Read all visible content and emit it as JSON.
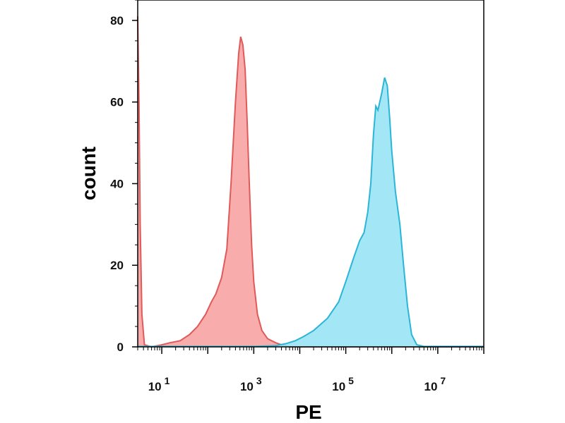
{
  "chart_data": {
    "type": "area",
    "xlabel": "PE",
    "ylabel": "count",
    "xscale": "log",
    "xlim": [
      3,
      100000000.0
    ],
    "ylim": [
      0,
      85
    ],
    "yticks": [
      0,
      20,
      40,
      60,
      80
    ],
    "xticks": [
      {
        "value": 10,
        "base": "10",
        "exp": "1"
      },
      {
        "value": 1000,
        "base": "10",
        "exp": "3"
      },
      {
        "value": 100000,
        "base": "10",
        "exp": "5"
      },
      {
        "value": 10000000,
        "base": "10",
        "exp": "7"
      }
    ],
    "grid": false,
    "legend": "none",
    "series": [
      {
        "color": "#e05a5a",
        "fill": "#f7a3a3",
        "points": [
          [
            3.0,
            81
          ],
          [
            3.2,
            60
          ],
          [
            3.4,
            30
          ],
          [
            3.7,
            8
          ],
          [
            4.2,
            0.5
          ],
          [
            6,
            0
          ],
          [
            10,
            0.5
          ],
          [
            15,
            1
          ],
          [
            25,
            1.5
          ],
          [
            40,
            3
          ],
          [
            60,
            5
          ],
          [
            90,
            8
          ],
          [
            120,
            11
          ],
          [
            150,
            13
          ],
          [
            200,
            17
          ],
          [
            260,
            24
          ],
          [
            320,
            40
          ],
          [
            400,
            60
          ],
          [
            470,
            72
          ],
          [
            520,
            76
          ],
          [
            580,
            74
          ],
          [
            650,
            68
          ],
          [
            720,
            55
          ],
          [
            800,
            40
          ],
          [
            900,
            25
          ],
          [
            1000,
            16
          ],
          [
            1200,
            8
          ],
          [
            1500,
            4
          ],
          [
            2000,
            2
          ],
          [
            3000,
            1
          ],
          [
            4000,
            0.5
          ],
          [
            6000,
            0
          ],
          [
            50000,
            0
          ],
          [
            100000,
            0
          ],
          [
            300000,
            0
          ],
          [
            1000000,
            0
          ],
          [
            100000000,
            0
          ]
        ]
      },
      {
        "color": "#2bb5d6",
        "fill": "#99e4f5",
        "points": [
          [
            3,
            0.1
          ],
          [
            1000,
            0.1
          ],
          [
            3000,
            0.3
          ],
          [
            5000,
            0.8
          ],
          [
            8000,
            1.5
          ],
          [
            12000,
            2.5
          ],
          [
            20000,
            4
          ],
          [
            40000,
            7
          ],
          [
            70000,
            11
          ],
          [
            100000,
            16
          ],
          [
            150000,
            22
          ],
          [
            200000,
            26
          ],
          [
            250000,
            28
          ],
          [
            300000,
            33
          ],
          [
            350000,
            40
          ],
          [
            400000,
            52
          ],
          [
            450000,
            59
          ],
          [
            500000,
            58
          ],
          [
            600000,
            62
          ],
          [
            700000,
            66
          ],
          [
            800000,
            64
          ],
          [
            900000,
            56
          ],
          [
            1000000,
            48
          ],
          [
            1200000,
            38
          ],
          [
            1500000,
            30
          ],
          [
            1800000,
            20
          ],
          [
            2200000,
            10
          ],
          [
            2700000,
            3
          ],
          [
            3500000,
            0.5
          ],
          [
            5000000,
            0.1
          ],
          [
            100000000,
            0.1
          ]
        ]
      }
    ]
  }
}
